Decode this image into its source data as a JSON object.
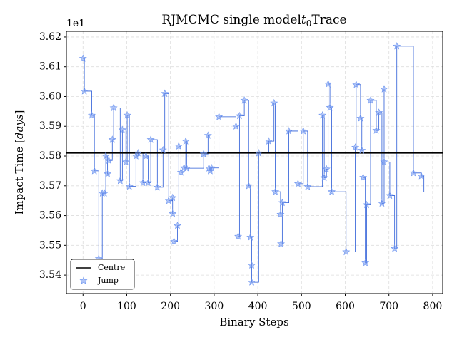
{
  "chart_data": {
    "type": "line",
    "title_parts": [
      "RJMCMC single model",
      "t",
      "0",
      "Trace"
    ],
    "xlabel": "Binary Steps",
    "ylabel_parts": [
      "Impact Time [",
      "days",
      "]"
    ],
    "y_offset": "1e1",
    "xlim": [
      -38,
      823
    ],
    "ylim": [
      3.5338,
      3.6219
    ],
    "xticks": [
      0,
      100,
      200,
      300,
      400,
      500,
      600,
      700,
      800
    ],
    "yticks": [
      3.54,
      3.55,
      3.56,
      3.57,
      3.58,
      3.59,
      {
        "value": 3.6,
        "label": "3.60"
      },
      3.61,
      3.62
    ],
    "grid": true,
    "legend": "lower left",
    "trace": {
      "color": "#2a5bd7",
      "drawstyle": "steps-post",
      "x": [
        0,
        3,
        20,
        26,
        36,
        44,
        49,
        52,
        56,
        59,
        67,
        70,
        85,
        90,
        98,
        101,
        106,
        121,
        126,
        137,
        144,
        149,
        155,
        170,
        183,
        187,
        196,
        205,
        205,
        208,
        216,
        219,
        224,
        231,
        235,
        237,
        276,
        286,
        288,
        291,
        294,
        311,
        350,
        355,
        358,
        369,
        379,
        383,
        386,
        386,
        402,
        425,
        437,
        440,
        452,
        453,
        456,
        471,
        492,
        504,
        514,
        548,
        552,
        557,
        561,
        565,
        569,
        602,
        623,
        625,
        635,
        638,
        641,
        646,
        649,
        658,
        671,
        677,
        684,
        689,
        689,
        702,
        713,
        718,
        756,
        774,
        780
      ],
      "y": [
        3.6128,
        3.6018,
        3.5937,
        3.575,
        3.5455,
        3.5675,
        3.5675,
        3.58,
        3.574,
        3.5785,
        3.5855,
        3.5962,
        3.5717,
        3.5888,
        3.578,
        3.5937,
        3.5698,
        3.58,
        3.581,
        3.571,
        3.58,
        3.571,
        3.5855,
        3.5695,
        3.582,
        3.601,
        3.565,
        3.566,
        3.5606,
        3.5513,
        3.5566,
        3.5833,
        3.5745,
        3.576,
        3.585,
        3.5759,
        3.5807,
        3.5869,
        3.5759,
        3.575,
        3.576,
        3.5932,
        3.59,
        3.553,
        3.5935,
        3.5987,
        3.57,
        3.5527,
        3.5433,
        3.5376,
        3.581,
        3.585,
        3.5978,
        3.568,
        3.5604,
        3.5505,
        3.5643,
        3.5884,
        3.5707,
        3.5884,
        3.5697,
        3.5937,
        3.5727,
        3.5756,
        3.6042,
        3.5963,
        3.568,
        3.5478,
        3.5829,
        3.604,
        3.5927,
        3.5819,
        3.5728,
        3.5441,
        3.5636,
        3.5987,
        3.5886,
        3.5946,
        3.5641,
        3.6025,
        3.578,
        3.5667,
        3.5489,
        3.6169,
        3.5743,
        3.5733,
        3.568
      ]
    },
    "centre": {
      "name": "Centre",
      "value": 3.581,
      "color": "#000000"
    },
    "jumps": {
      "name": "Jump",
      "color": "#6f96f0",
      "marker": "star",
      "x": [
        0,
        3,
        20,
        26,
        36,
        44,
        49,
        52,
        56,
        59,
        67,
        70,
        85,
        90,
        98,
        101,
        106,
        121,
        126,
        137,
        144,
        149,
        155,
        170,
        183,
        187,
        196,
        205,
        205,
        208,
        216,
        219,
        224,
        231,
        235,
        237,
        276,
        286,
        288,
        291,
        294,
        311,
        350,
        355,
        358,
        369,
        379,
        383,
        386,
        386,
        402,
        425,
        437,
        440,
        452,
        453,
        456,
        471,
        492,
        504,
        514,
        548,
        552,
        557,
        561,
        565,
        569,
        602,
        623,
        625,
        635,
        638,
        641,
        646,
        649,
        658,
        671,
        677,
        684,
        689,
        689,
        702,
        713,
        718,
        756,
        774
      ],
      "y": [
        3.6128,
        3.6018,
        3.5937,
        3.575,
        3.5455,
        3.5675,
        3.5675,
        3.58,
        3.574,
        3.5785,
        3.5855,
        3.5962,
        3.5717,
        3.5888,
        3.578,
        3.5937,
        3.5698,
        3.58,
        3.581,
        3.571,
        3.58,
        3.571,
        3.5855,
        3.5695,
        3.582,
        3.601,
        3.565,
        3.566,
        3.5606,
        3.5513,
        3.5566,
        3.5833,
        3.5745,
        3.576,
        3.585,
        3.5759,
        3.5807,
        3.5869,
        3.5759,
        3.575,
        3.576,
        3.5932,
        3.59,
        3.553,
        3.5935,
        3.5987,
        3.57,
        3.5527,
        3.5433,
        3.5376,
        3.581,
        3.585,
        3.5978,
        3.568,
        3.5604,
        3.5505,
        3.5643,
        3.5884,
        3.5707,
        3.5884,
        3.5697,
        3.5937,
        3.5727,
        3.5756,
        3.6042,
        3.5963,
        3.568,
        3.5478,
        3.5829,
        3.604,
        3.5927,
        3.5819,
        3.5728,
        3.5441,
        3.5636,
        3.5987,
        3.5886,
        3.5946,
        3.5641,
        3.6025,
        3.578,
        3.5667,
        3.5489,
        3.6169,
        3.5743,
        3.5733
      ]
    }
  }
}
